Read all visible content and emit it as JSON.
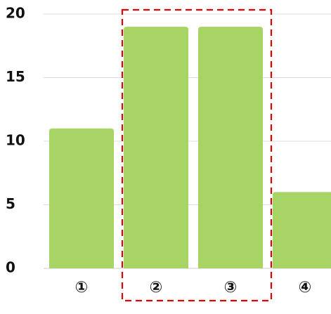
{
  "chart_data": {
    "type": "bar",
    "categories": [
      "①",
      "②",
      "③",
      "④"
    ],
    "values": [
      11,
      19,
      19,
      6
    ],
    "ylim": [
      0,
      20
    ],
    "y_ticks": [
      0,
      5,
      10,
      15,
      20
    ],
    "grid": true,
    "highlight": {
      "categories": [
        "②",
        "③"
      ],
      "style": "dashed-box"
    }
  },
  "colors": {
    "bar": "#a8d465",
    "grid": "#dddddd",
    "highlight": "#e00000",
    "text": "#111111"
  }
}
